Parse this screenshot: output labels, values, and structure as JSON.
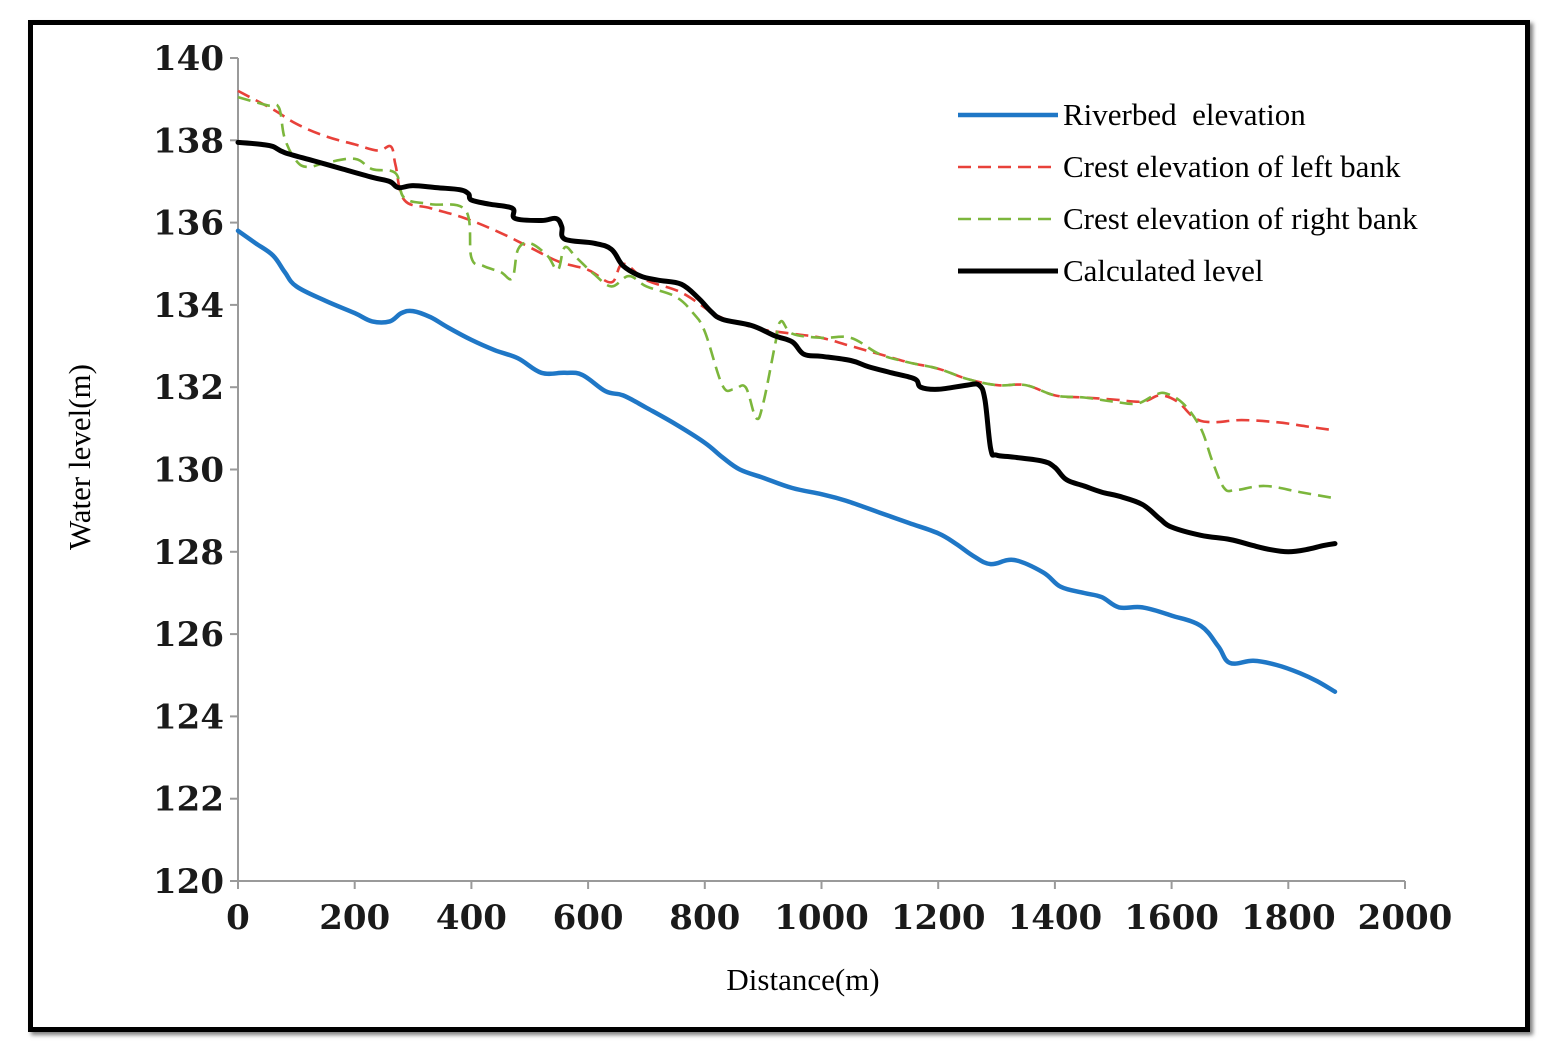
{
  "chart_data": {
    "type": "line",
    "xlabel": "Distance(m)",
    "ylabel": "Water level(m)",
    "xlim": [
      0,
      2000
    ],
    "ylim": [
      120,
      140
    ],
    "x_ticks": [
      "0",
      "200",
      "400",
      "600",
      "800",
      "1000",
      "1200",
      "1400",
      "1600",
      "1800",
      "2000"
    ],
    "y_ticks": [
      "120",
      "122",
      "124",
      "126",
      "128",
      "130",
      "132",
      "134",
      "136",
      "138",
      "140"
    ],
    "grid": false,
    "legend_position": "top-right",
    "series": [
      {
        "name": "Riverbed  elevation",
        "color": "#1f77c6",
        "style": "solid",
        "points": [
          [
            0,
            135.8
          ],
          [
            30,
            135.5
          ],
          [
            60,
            135.2
          ],
          [
            80,
            134.8
          ],
          [
            100,
            134.45
          ],
          [
            150,
            134.1
          ],
          [
            200,
            133.8
          ],
          [
            230,
            133.6
          ],
          [
            260,
            133.6
          ],
          [
            280,
            133.8
          ],
          [
            300,
            133.85
          ],
          [
            330,
            133.7
          ],
          [
            360,
            133.45
          ],
          [
            400,
            133.15
          ],
          [
            440,
            132.9
          ],
          [
            480,
            132.7
          ],
          [
            520,
            132.35
          ],
          [
            560,
            132.35
          ],
          [
            590,
            132.3
          ],
          [
            630,
            131.9
          ],
          [
            660,
            131.8
          ],
          [
            700,
            131.5
          ],
          [
            750,
            131.1
          ],
          [
            800,
            130.65
          ],
          [
            830,
            130.3
          ],
          [
            860,
            130.0
          ],
          [
            900,
            129.8
          ],
          [
            950,
            129.55
          ],
          [
            1000,
            129.4
          ],
          [
            1040,
            129.25
          ],
          [
            1100,
            128.95
          ],
          [
            1150,
            128.7
          ],
          [
            1200,
            128.45
          ],
          [
            1230,
            128.2
          ],
          [
            1260,
            127.9
          ],
          [
            1290,
            127.7
          ],
          [
            1330,
            127.8
          ],
          [
            1380,
            127.5
          ],
          [
            1410,
            127.15
          ],
          [
            1450,
            127.0
          ],
          [
            1480,
            126.9
          ],
          [
            1510,
            126.65
          ],
          [
            1550,
            126.65
          ],
          [
            1600,
            126.45
          ],
          [
            1650,
            126.2
          ],
          [
            1680,
            125.7
          ],
          [
            1700,
            125.3
          ],
          [
            1740,
            125.35
          ],
          [
            1780,
            125.25
          ],
          [
            1820,
            125.05
          ],
          [
            1850,
            124.85
          ],
          [
            1880,
            124.6
          ]
        ]
      },
      {
        "name": "Crest elevation of left bank",
        "color": "#e8413a",
        "style": "dashed",
        "points": [
          [
            0,
            139.2
          ],
          [
            60,
            138.75
          ],
          [
            100,
            138.4
          ],
          [
            150,
            138.1
          ],
          [
            200,
            137.9
          ],
          [
            240,
            137.75
          ],
          [
            262,
            137.85
          ],
          [
            270,
            137.4
          ],
          [
            285,
            136.55
          ],
          [
            330,
            136.35
          ],
          [
            390,
            136.1
          ],
          [
            450,
            135.75
          ],
          [
            500,
            135.4
          ],
          [
            550,
            135.05
          ],
          [
            600,
            134.85
          ],
          [
            640,
            134.55
          ],
          [
            660,
            135.0
          ],
          [
            700,
            134.6
          ],
          [
            760,
            134.3
          ],
          [
            820,
            133.75
          ],
          [
            860,
            133.55
          ],
          [
            900,
            133.4
          ],
          [
            950,
            133.3
          ],
          [
            1000,
            133.2
          ],
          [
            1050,
            133.0
          ],
          [
            1100,
            132.8
          ],
          [
            1150,
            132.6
          ],
          [
            1200,
            132.45
          ],
          [
            1250,
            132.2
          ],
          [
            1300,
            132.05
          ],
          [
            1350,
            132.05
          ],
          [
            1400,
            131.8
          ],
          [
            1450,
            131.75
          ],
          [
            1500,
            131.7
          ],
          [
            1550,
            131.65
          ],
          [
            1580,
            131.8
          ],
          [
            1610,
            131.65
          ],
          [
            1640,
            131.25
          ],
          [
            1670,
            131.15
          ],
          [
            1720,
            131.2
          ],
          [
            1780,
            131.15
          ],
          [
            1830,
            131.05
          ],
          [
            1880,
            130.95
          ]
        ]
      },
      {
        "name": "Crest elevation of right bank",
        "color": "#7cb63c",
        "style": "dashed",
        "points": [
          [
            0,
            139.05
          ],
          [
            50,
            138.85
          ],
          [
            70,
            138.8
          ],
          [
            80,
            138.05
          ],
          [
            100,
            137.5
          ],
          [
            120,
            137.35
          ],
          [
            150,
            137.45
          ],
          [
            200,
            137.55
          ],
          [
            230,
            137.3
          ],
          [
            270,
            137.2
          ],
          [
            285,
            136.6
          ],
          [
            330,
            136.45
          ],
          [
            390,
            136.3
          ],
          [
            400,
            135.15
          ],
          [
            420,
            134.95
          ],
          [
            450,
            134.8
          ],
          [
            470,
            134.65
          ],
          [
            480,
            135.35
          ],
          [
            500,
            135.5
          ],
          [
            530,
            135.2
          ],
          [
            548,
            134.85
          ],
          [
            560,
            135.4
          ],
          [
            580,
            135.15
          ],
          [
            610,
            134.75
          ],
          [
            640,
            134.45
          ],
          [
            670,
            134.7
          ],
          [
            700,
            134.45
          ],
          [
            750,
            134.2
          ],
          [
            780,
            133.8
          ],
          [
            800,
            133.35
          ],
          [
            830,
            132.05
          ],
          [
            850,
            131.95
          ],
          [
            870,
            132.0
          ],
          [
            888,
            131.25
          ],
          [
            900,
            131.6
          ],
          [
            920,
            133.0
          ],
          [
            930,
            133.6
          ],
          [
            950,
            133.3
          ],
          [
            1000,
            133.2
          ],
          [
            1050,
            133.2
          ],
          [
            1100,
            132.8
          ],
          [
            1150,
            132.6
          ],
          [
            1200,
            132.45
          ],
          [
            1250,
            132.2
          ],
          [
            1300,
            132.05
          ],
          [
            1350,
            132.05
          ],
          [
            1400,
            131.8
          ],
          [
            1450,
            131.75
          ],
          [
            1500,
            131.65
          ],
          [
            1540,
            131.6
          ],
          [
            1570,
            131.8
          ],
          [
            1590,
            131.85
          ],
          [
            1620,
            131.6
          ],
          [
            1650,
            131.0
          ],
          [
            1670,
            130.2
          ],
          [
            1690,
            129.55
          ],
          [
            1710,
            129.5
          ],
          [
            1760,
            129.6
          ],
          [
            1820,
            129.45
          ],
          [
            1880,
            129.3
          ]
        ]
      },
      {
        "name": "Calculated level",
        "color": "#000000",
        "style": "solid",
        "points": [
          [
            0,
            137.95
          ],
          [
            40,
            137.9
          ],
          [
            60,
            137.85
          ],
          [
            80,
            137.7
          ],
          [
            130,
            137.5
          ],
          [
            180,
            137.3
          ],
          [
            230,
            137.1
          ],
          [
            260,
            137.0
          ],
          [
            275,
            136.85
          ],
          [
            300,
            136.9
          ],
          [
            340,
            136.85
          ],
          [
            380,
            136.8
          ],
          [
            395,
            136.7
          ],
          [
            400,
            136.55
          ],
          [
            430,
            136.45
          ],
          [
            470,
            136.35
          ],
          [
            475,
            136.1
          ],
          [
            520,
            136.05
          ],
          [
            545,
            136.1
          ],
          [
            555,
            135.9
          ],
          [
            560,
            135.6
          ],
          [
            610,
            135.5
          ],
          [
            640,
            135.35
          ],
          [
            660,
            134.95
          ],
          [
            690,
            134.7
          ],
          [
            720,
            134.6
          ],
          [
            760,
            134.5
          ],
          [
            790,
            134.15
          ],
          [
            810,
            133.85
          ],
          [
            830,
            133.65
          ],
          [
            880,
            133.5
          ],
          [
            920,
            133.25
          ],
          [
            950,
            133.1
          ],
          [
            970,
            132.8
          ],
          [
            1000,
            132.75
          ],
          [
            1050,
            132.65
          ],
          [
            1080,
            132.5
          ],
          [
            1120,
            132.35
          ],
          [
            1160,
            132.2
          ],
          [
            1170,
            132.0
          ],
          [
            1200,
            131.95
          ],
          [
            1250,
            132.05
          ],
          [
            1270,
            132.05
          ],
          [
            1280,
            131.7
          ],
          [
            1290,
            130.5
          ],
          [
            1300,
            130.35
          ],
          [
            1330,
            130.3
          ],
          [
            1380,
            130.2
          ],
          [
            1400,
            130.05
          ],
          [
            1420,
            129.75
          ],
          [
            1450,
            129.6
          ],
          [
            1480,
            129.45
          ],
          [
            1510,
            129.35
          ],
          [
            1550,
            129.15
          ],
          [
            1580,
            128.8
          ],
          [
            1600,
            128.6
          ],
          [
            1650,
            128.4
          ],
          [
            1700,
            128.3
          ],
          [
            1740,
            128.15
          ],
          [
            1770,
            128.05
          ],
          [
            1800,
            128.0
          ],
          [
            1830,
            128.05
          ],
          [
            1860,
            128.15
          ],
          [
            1880,
            128.2
          ]
        ]
      }
    ]
  }
}
